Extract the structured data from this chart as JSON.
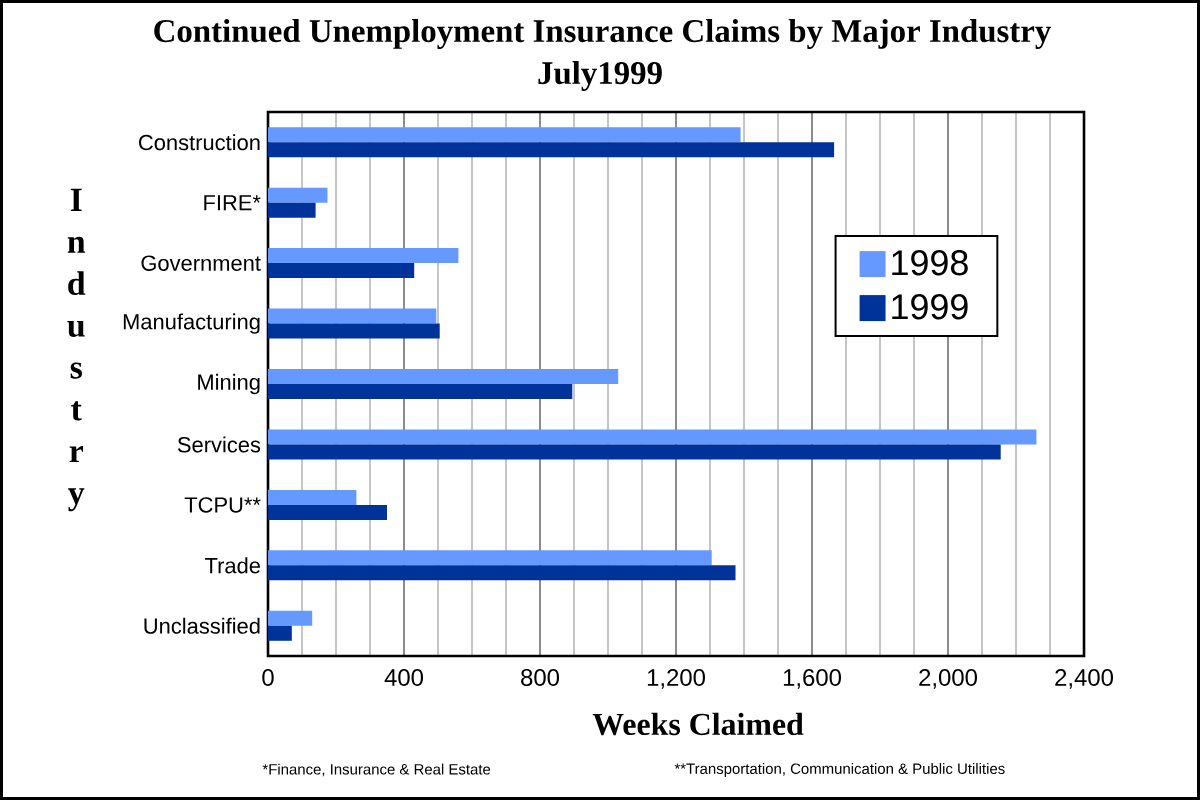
{
  "chart_data": {
    "type": "bar",
    "orientation": "horizontal",
    "title": "Continued Unemployment Insurance Claims by Major Industry",
    "subtitle": "July1999",
    "xlabel": "Weeks Claimed",
    "ylabel": "Industry",
    "categories": [
      "Construction",
      "FIRE*",
      "Government",
      "Manufacturing",
      "Mining",
      "Services",
      "TCPU**",
      "Trade",
      "Unclassified"
    ],
    "series": [
      {
        "name": "1998",
        "color": "#6699ff",
        "values": [
          1390,
          175,
          560,
          495,
          1030,
          2260,
          260,
          1305,
          130
        ]
      },
      {
        "name": "1999",
        "color": "#003399",
        "values": [
          1665,
          140,
          430,
          505,
          895,
          2155,
          350,
          1375,
          70
        ]
      }
    ],
    "xlim": [
      0,
      2400
    ],
    "xticks": [
      0,
      {
        "value": 100,
        "label": null
      },
      {
        "value": 200,
        "label": null
      },
      {
        "value": 300,
        "label": null
      },
      400,
      {
        "value": 500,
        "label": null
      },
      {
        "value": 600,
        "label": null
      },
      {
        "value": 700,
        "label": null
      },
      800,
      {
        "value": 900,
        "label": null
      },
      {
        "value": 1000,
        "label": null
      },
      {
        "value": 1100,
        "label": null
      },
      {
        "value": 1200,
        "label": "1,200"
      },
      {
        "value": 1300,
        "label": null
      },
      {
        "value": 1400,
        "label": null
      },
      {
        "value": 1500,
        "label": null
      },
      {
        "value": 1600,
        "label": "1,600"
      },
      {
        "value": 1700,
        "label": null
      },
      {
        "value": 1800,
        "label": null
      },
      {
        "value": 1900,
        "label": null
      },
      {
        "value": 2000,
        "label": "2,000"
      },
      {
        "value": 2100,
        "label": null
      },
      {
        "value": 2200,
        "label": null
      },
      {
        "value": 2300,
        "label": null
      },
      {
        "value": 2400,
        "label": "2,400"
      }
    ],
    "grid": "x",
    "legend": "right",
    "annotations": [
      "*Finance, Insurance & Real Estate",
      "**Transportation, Communication & Public Utilities"
    ]
  }
}
